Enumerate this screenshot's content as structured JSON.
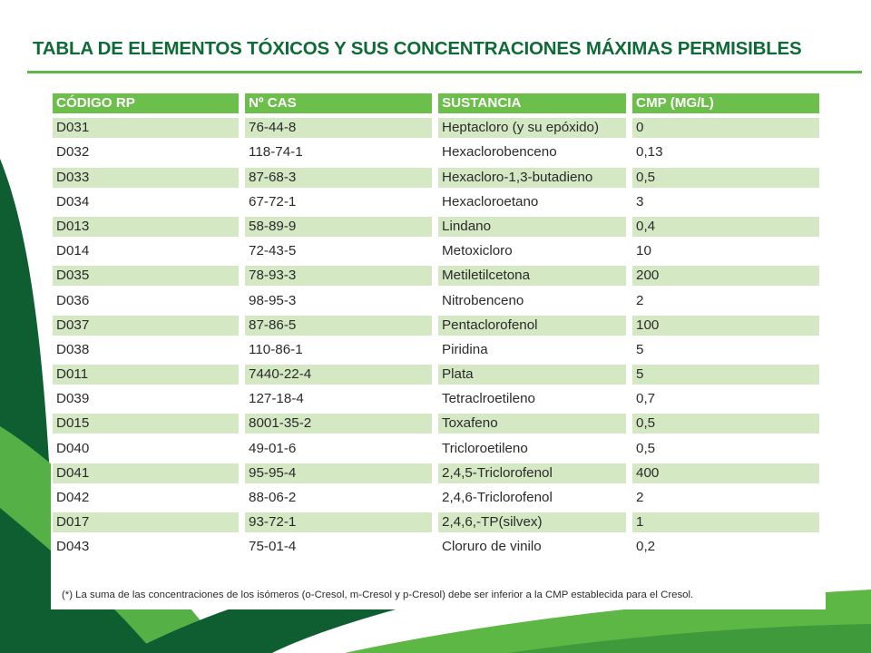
{
  "title": "TABLA DE ELEMENTOS TÓXICOS Y SUS CONCENTRACIONES MÁXIMAS PERMISIBLES",
  "colors": {
    "title": "#0f6a37",
    "rule": "#5cb745",
    "header": "#6cbf4a",
    "shaded_row": "#d4e8c4",
    "dark_green": "#0e5e32",
    "light_green": "#55b146"
  },
  "table": {
    "columns": [
      "CÓDIGO RP",
      "Nº CAS",
      "SUSTANCIA",
      "CMP (MG/L)"
    ],
    "rows": [
      [
        "D031",
        "76-44-8",
        "Heptacloro (y su epóxido)",
        "0"
      ],
      [
        "D032",
        "118-74-1",
        "Hexaclorobenceno",
        "0,13"
      ],
      [
        "D033",
        "87-68-3",
        "Hexacloro-1,3-butadieno",
        "0,5"
      ],
      [
        "D034",
        "67-72-1",
        "Hexacloroetano",
        "3"
      ],
      [
        "D013",
        "58-89-9",
        "Lindano",
        "0,4"
      ],
      [
        "D014",
        "72-43-5",
        "Metoxicloro",
        "10"
      ],
      [
        "D035",
        "78-93-3",
        "Metiletilcetona",
        "200"
      ],
      [
        "D036",
        "98-95-3",
        "Nitrobenceno",
        "2"
      ],
      [
        "D037",
        "87-86-5",
        "Pentaclorofenol",
        "100"
      ],
      [
        "D038",
        "110-86-1",
        "Piridina",
        "5"
      ],
      [
        "D011",
        "7440-22-4",
        "Plata",
        "5"
      ],
      [
        "D039",
        "127-18-4",
        "Tetraclroetileno",
        "0,7"
      ],
      [
        "D015",
        "8001-35-2",
        "Toxafeno",
        "0,5"
      ],
      [
        "D040",
        "49-01-6",
        "Tricloroetileno",
        "0,5"
      ],
      [
        "D041",
        "95-95-4",
        "2,4,5-Triclorofenol",
        "400"
      ],
      [
        "D042",
        "88-06-2",
        "2,4,6-Triclorofenol",
        "2"
      ],
      [
        "D017",
        "93-72-1",
        "2,4,6,-TP(silvex)",
        "1"
      ],
      [
        "D043",
        "75-01-4",
        "Cloruro de vinilo",
        "0,2"
      ]
    ]
  },
  "footnote": "(*) La suma de las concentraciones de los isómeros (o-Cresol, m-Cresol y p-Cresol) debe ser inferior a la CMP establecida para el Cresol."
}
